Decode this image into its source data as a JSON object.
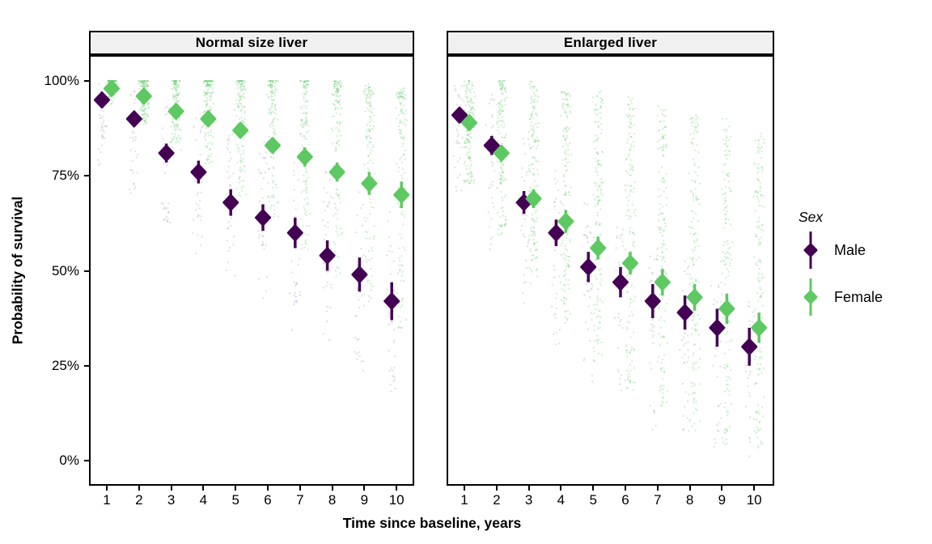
{
  "figure": {
    "y_axis": {
      "title": "Probability of survival",
      "tick_labels": [
        "100%",
        "75%",
        "50%",
        "25%",
        "0%"
      ],
      "tick_values": [
        100,
        75,
        50,
        25,
        0
      ]
    },
    "x_axis": {
      "title": "Time since baseline, years",
      "tick_labels": [
        "1",
        "2",
        "3",
        "4",
        "5",
        "6",
        "7",
        "8",
        "9",
        "10"
      ]
    },
    "legend": {
      "title": "Sex",
      "items": [
        {
          "label": "Male",
          "color": "#440154"
        },
        {
          "label": "Female",
          "color": "#5EC962"
        }
      ]
    },
    "colors": {
      "male": "#440154",
      "female": "#5EC962",
      "strip_bg": "#F0F0F0",
      "panel_border": "#000000",
      "text": "#000000",
      "background": "#FFFFFF"
    }
  },
  "chart_data": {
    "type": "scatter",
    "title": "",
    "xlabel": "Time since baseline, years",
    "ylabel": "Probability of survival",
    "x": [
      1,
      2,
      3,
      4,
      5,
      6,
      7,
      8,
      9,
      10
    ],
    "ylim": [
      0,
      100
    ],
    "y_unit": "%",
    "grid": false,
    "legend_position": "right",
    "marker": "diamond-pointrange",
    "panels": [
      {
        "facet": "Normal size liver",
        "series": [
          {
            "name": "Male",
            "color": "#440154",
            "values": [
              95,
              90,
              81,
              76,
              68,
              64,
              60,
              54,
              49,
              42
            ],
            "ci_low": [
              93,
              88,
              78.5,
              73,
              64.5,
              60.5,
              56,
              50,
              44.5,
              37
            ],
            "ci_high": [
              96.5,
              92,
              83.5,
              79,
              71.5,
              67.5,
              64,
              58,
              53.5,
              47
            ]
          },
          {
            "name": "Female",
            "color": "#5EC962",
            "values": [
              98,
              96,
              92,
              90,
              87,
              83,
              80,
              76,
              73,
              70
            ],
            "ci_low": [
              97,
              94.5,
              90.5,
              88,
              85,
              81,
              77.5,
              73.5,
              70,
              66.5
            ],
            "ci_high": [
              99,
              97.5,
              93.5,
              92,
              89,
              85,
              82.5,
              78.5,
              76,
              73.5
            ]
          }
        ],
        "jitter_clouds": {
          "male": {
            "top": [
              99,
              97,
              94,
              91,
              88,
              84,
              80,
              76,
              72,
              68
            ],
            "bottom": [
              78,
              70,
              62,
              54,
              46,
              40,
              34,
              28,
              24,
              18
            ],
            "count": 35,
            "skew": 1.1
          },
          "female": {
            "top": [
              100,
              100,
              100,
              100,
              100,
              100,
              100,
              99,
              98,
              97
            ],
            "bottom": [
              95,
              89,
              83,
              77,
              70,
              63,
              56,
              49,
              42,
              35
            ],
            "count": 130,
            "skew": 2.2
          }
        }
      },
      {
        "facet": "Enlarged liver",
        "series": [
          {
            "name": "Male",
            "color": "#440154",
            "values": [
              91,
              83,
              68,
              60,
              51,
              47,
              42,
              39,
              35,
              30
            ],
            "ci_low": [
              89,
              80.5,
              65,
              56.5,
              47,
              43,
              37.5,
              34.5,
              30,
              25
            ],
            "ci_high": [
              92.5,
              85.5,
              71,
              63.5,
              55,
              51,
              46.5,
              43.5,
              40,
              35
            ]
          },
          {
            "name": "Female",
            "color": "#5EC962",
            "values": [
              89,
              81,
              69,
              63,
              56,
              52,
              47,
              43,
              40,
              35
            ],
            "ci_low": [
              87.5,
              79,
              66.5,
              60,
              53,
              49,
              43.5,
              39.5,
              36,
              31
            ],
            "ci_high": [
              90.5,
              83,
              71.5,
              66,
              59,
              55,
              50.5,
              46.5,
              44,
              39
            ]
          }
        ],
        "jitter_clouds": {
          "male": {
            "top": [
              100,
              96,
              85,
              76,
              68,
              62,
              56,
              52,
              48,
              42
            ],
            "bottom": [
              70,
              55,
              42,
              30,
              20,
              14,
              9,
              6,
              4,
              2
            ],
            "count": 35,
            "skew": 1.1
          },
          "female": {
            "top": [
              100,
              100,
              99,
              98,
              97,
              95,
              93,
              91,
              89,
              86
            ],
            "bottom": [
              73,
              60,
              48,
              36,
              27,
              19,
              13,
              8,
              5,
              3
            ],
            "count": 150,
            "skew": 1.3
          }
        }
      }
    ]
  }
}
